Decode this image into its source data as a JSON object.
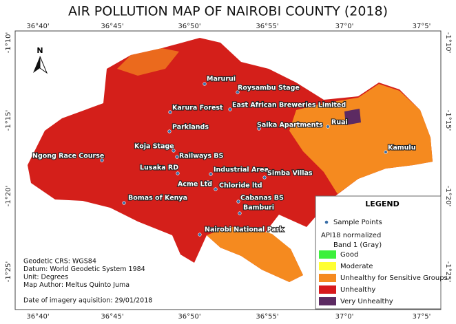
{
  "title": "AIR POLLUTION MAP OF NAIROBI COUNTY (2018)",
  "lon_labels": [
    "36°40'",
    "36°45'",
    "36°50'",
    "36°55'",
    "37°0'",
    "37°5'"
  ],
  "lat_labels": [
    "-1°10'",
    "-1°15'",
    "-1°20'",
    "-1°25'"
  ],
  "north": "N",
  "places": [
    "Marurui",
    "Roysambu Stage",
    "Karura Forest",
    "East African Breweries Limited",
    "Ruai",
    "Parklands",
    "Saika Apartments",
    "Koja Stage",
    "Railways BS",
    "Kamulu",
    "Lusaka RD",
    "Industrial Area",
    "Simba Villas",
    "Ngong Race Course",
    "Acme Ltd",
    "Chloride ltd",
    "Bomas of Kenya",
    "Cabanas BS",
    "Bamburi",
    "Nairobi National Park"
  ],
  "legend": {
    "title": "LEGEND",
    "sample_points": "Sample Points",
    "layer": "API18 normalized",
    "band": "Band 1 (Gray)",
    "classes": [
      {
        "label": "Good",
        "color": "#3cf03c"
      },
      {
        "label": "Moderate",
        "color": "#ffff33"
      },
      {
        "label": "Unhealthy for Sensitive Groups",
        "color": "#f58a1f"
      },
      {
        "label": "Unhealthy",
        "color": "#d7191c"
      },
      {
        "label": "Very Unhealthy",
        "color": "#5c2a62"
      }
    ]
  },
  "info": [
    "Geodetic CRS: WGS84",
    "Datum: World Geodetic System 1984",
    "Unit: Degrees",
    "Map Author: Meltus Quinto Juma"
  ],
  "date": "Date of imagery aquisition: 29/01/2018"
}
